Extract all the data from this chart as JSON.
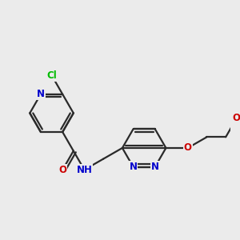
{
  "background_color": "#ebebeb",
  "atom_colors": {
    "N": "#0000cc",
    "O": "#cc0000",
    "Cl": "#00bb00",
    "C": "#1a1a1a",
    "H": "#555555"
  },
  "bond_color": "#2a2a2a",
  "bond_width": 1.6,
  "font_size_atom": 8.5
}
